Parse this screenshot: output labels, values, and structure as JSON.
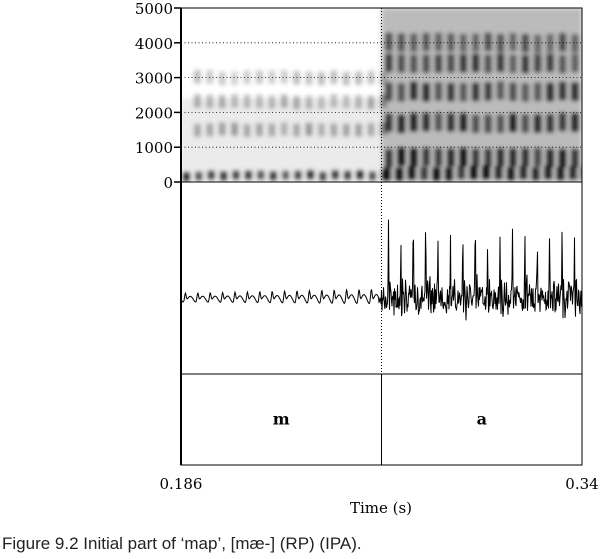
{
  "chart_data": {
    "type": "spectrogram",
    "panels": [
      "spectrogram",
      "waveform",
      "segmentation"
    ],
    "y_axis": {
      "ticks": [
        0,
        1000,
        2000,
        3000,
        4000,
        5000
      ],
      "tick_labels": [
        "0",
        "1000",
        "2000",
        "3000",
        "4000",
        "5000"
      ],
      "ylim": [
        0,
        5000
      ],
      "grid": true
    },
    "x_axis": {
      "xlim": [
        0.186,
        0.34
      ],
      "tick_labels": [
        "0.186",
        "0.34"
      ],
      "label": "Time (s)"
    },
    "boundary_time": 0.263,
    "segments": [
      {
        "label": "m",
        "start": 0.186,
        "end": 0.263
      },
      {
        "label": "a",
        "start": 0.263,
        "end": 0.34
      }
    ],
    "spectrogram_energy": {
      "m": {
        "voice_bar": 0.8,
        "formants_hz": [
          1500,
          2300,
          3000
        ],
        "formant_strength": 0.35
      },
      "a": {
        "formants_hz": [
          700,
          1700,
          2600,
          3400,
          4000
        ],
        "formant_strength": 0.85
      }
    },
    "waveform": {
      "m": {
        "relative_amplitude": 0.12
      },
      "a": {
        "relative_amplitude": 0.9
      }
    }
  },
  "caption": "Figure 9.2  Initial part of ‘map’, [mæ-] (RP) (IPA)."
}
